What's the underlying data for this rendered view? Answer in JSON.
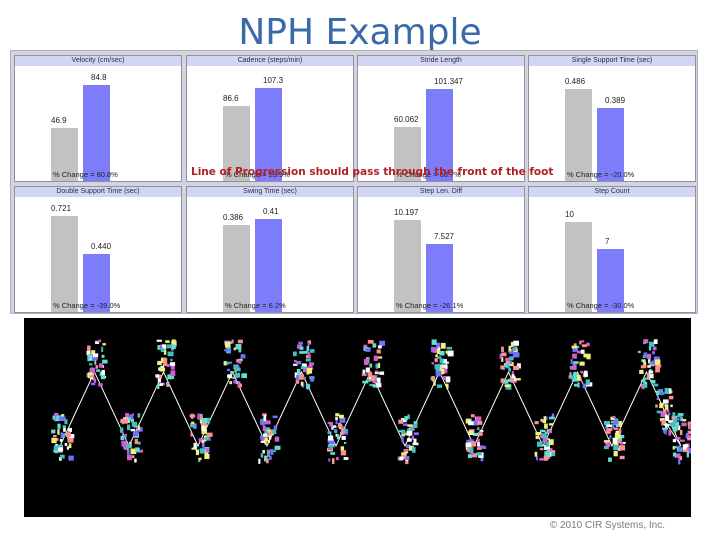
{
  "title": "NPH Example",
  "overlay_text": "Line of Progression should pass through the front of the foot",
  "footer": "© 2010 CIR Systems, Inc.",
  "colors": {
    "before": "#c2c2c2",
    "after": "#7d7dfb",
    "title": "#3a6aa8"
  },
  "chart_data": [
    {
      "type": "bar",
      "title": "Velocity (cm/sec)",
      "values": [
        46.9,
        84.8
      ],
      "value_labels": [
        "46.9",
        "84.8"
      ],
      "change": "% Change = 80.8%",
      "ylim": [
        0,
        100
      ]
    },
    {
      "type": "bar",
      "title": "Cadence (steps/min)",
      "values": [
        86.6,
        107.3
      ],
      "value_labels": [
        "86.6",
        "107.3"
      ],
      "change": "% Change = 23.9%",
      "ylim": [
        0,
        130
      ]
    },
    {
      "type": "bar",
      "title": "Stride Length",
      "values": [
        60.062,
        101.347
      ],
      "value_labels": [
        "60.062",
        "101.347"
      ],
      "change": "% Change = 68.7%",
      "ylim": [
        0,
        125
      ]
    },
    {
      "type": "bar",
      "title": "Single Support Time (sec)",
      "values": [
        0.486,
        0.389
      ],
      "value_labels": [
        "0.486",
        "0.389"
      ],
      "change": "% Change = -20.0%",
      "ylim": [
        0,
        0.6
      ]
    },
    {
      "type": "bar",
      "title": "Double Support Time (sec)",
      "values": [
        0.721,
        0.44
      ],
      "value_labels": [
        "0.721",
        "0.440"
      ],
      "change": "% Change = -39.0%",
      "ylim": [
        0,
        0.85
      ]
    },
    {
      "type": "bar",
      "title": "Swing Time (sec)",
      "values": [
        0.386,
        0.41
      ],
      "value_labels": [
        "0.386",
        "0.41"
      ],
      "change": "% Change = 6.2%",
      "ylim": [
        0,
        0.5
      ]
    },
    {
      "type": "bar",
      "title": "Step Len. Diff",
      "values": [
        10.197,
        7.527
      ],
      "value_labels": [
        "10.197",
        "7.527"
      ],
      "change": "% Change = -26.1%",
      "ylim": [
        0,
        12.5
      ]
    },
    {
      "type": "bar",
      "title": "Step Count",
      "values": [
        10,
        7
      ],
      "value_labels": [
        "10",
        "7"
      ],
      "change": "% Change = -30.0%",
      "ylim": [
        0,
        12.5
      ]
    }
  ]
}
